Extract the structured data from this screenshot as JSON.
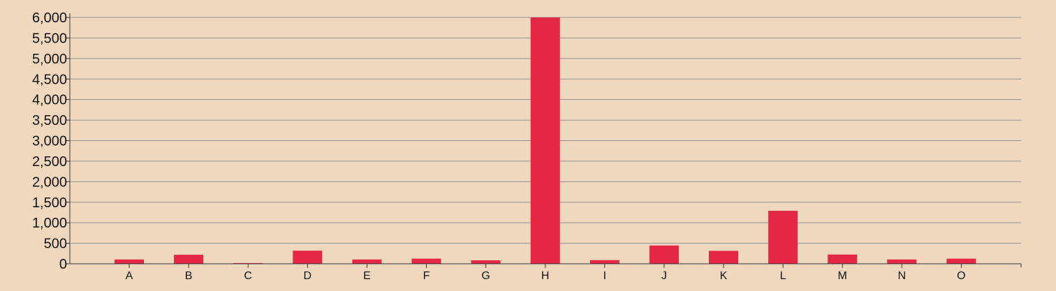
{
  "chart_data": {
    "type": "bar",
    "categories": [
      "A",
      "B",
      "C",
      "D",
      "E",
      "F",
      "G",
      "H",
      "I",
      "J",
      "K",
      "L",
      "M",
      "N",
      "O"
    ],
    "values": [
      105,
      220,
      15,
      320,
      105,
      125,
      85,
      6000,
      90,
      445,
      315,
      1290,
      225,
      105,
      125
    ],
    "ylim": [
      0,
      6000
    ],
    "yticks": [
      0,
      500,
      1000,
      1500,
      2000,
      2500,
      3000,
      3500,
      4000,
      4500,
      5000,
      5500,
      6000
    ],
    "ytick_labels": [
      "0",
      "500",
      "1,000",
      "1,500",
      "2,000",
      "2,500",
      "3,000",
      "3,500",
      "4,000",
      "4,500",
      "5,000",
      "5,500",
      "6,000"
    ],
    "grid": true,
    "title": "",
    "xlabel": "",
    "ylabel": "",
    "colors": {
      "bar": "#e52746",
      "grid": "#8f8f8f",
      "axis": "#333333",
      "background": "#f0d8bf",
      "text": "#111111"
    }
  }
}
